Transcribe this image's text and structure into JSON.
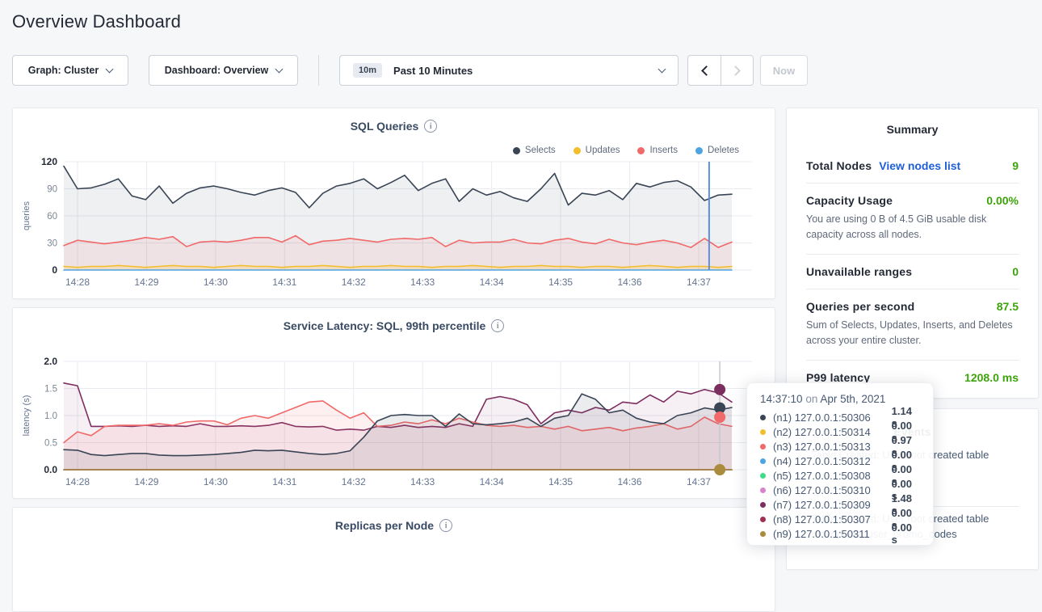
{
  "page": {
    "title": "Overview Dashboard"
  },
  "toolbar": {
    "graph_dropdown": {
      "label": "Graph: Cluster"
    },
    "dashboard_dropdown": {
      "label": "Dashboard: Overview"
    },
    "time_picker": {
      "badge": "10m",
      "label": "Past 10 Minutes"
    },
    "now_button": "Now"
  },
  "summary": {
    "title": "Summary",
    "rows": [
      {
        "label": "Total Nodes",
        "link": "View nodes list",
        "value": "9"
      },
      {
        "label": "Capacity Usage",
        "value": "0.00%",
        "description": "You are using 0 B of 4.5 GiB usable disk capacity across all nodes."
      },
      {
        "label": "Unavailable ranges",
        "value": "0"
      },
      {
        "label": "Queries per second",
        "value": "87.5",
        "description": "Sum of Selects, Updates, Inserts, and Deletes across your entire cluster."
      },
      {
        "label": "P99 latency",
        "value": "1208.0 ms"
      }
    ]
  },
  "events": {
    "title": "Events",
    "rows": [
      {
        "line1": "Table Created: User root created table"
      },
      {
        "line1": "Table Created: User root created table",
        "line2": "movr.public.user_promo_codes"
      }
    ]
  },
  "tooltip": {
    "time": "14:37:10",
    "on": " on ",
    "date": "Apr 5th, 2021",
    "rows": [
      {
        "color": "#394455",
        "label": "(n1) 127.0.0.1:50306",
        "value": "1.14 s"
      },
      {
        "color": "#f2be2c",
        "label": "(n2) 127.0.0.1:50314",
        "value": "0.00 s"
      },
      {
        "color": "#f16969",
        "label": "(n3) 127.0.0.1:50313",
        "value": "0.97 s"
      },
      {
        "color": "#4da4e0",
        "label": "(n4) 127.0.0.1:50312",
        "value": "0.00 s"
      },
      {
        "color": "#3edc8a",
        "label": "(n5) 127.0.0.1:50308",
        "value": "0.00 s"
      },
      {
        "color": "#d983cf",
        "label": "(n6) 127.0.0.1:50310",
        "value": "0.00 s"
      },
      {
        "color": "#7d2e60",
        "label": "(n7) 127.0.0.1:50309",
        "value": "1.48 s"
      },
      {
        "color": "#9e3150",
        "label": "(n8) 127.0.0.1:50307",
        "value": "0.00 s"
      },
      {
        "color": "#ab8b3e",
        "label": "(n9) 127.0.0.1:50311",
        "value": "0.00 s"
      }
    ]
  },
  "chart_data": [
    {
      "type": "area",
      "title": "SQL Queries",
      "ylabel": "queries",
      "ylim": [
        0,
        120
      ],
      "y_ticks": [
        0,
        30,
        60,
        90,
        120
      ],
      "y_tick_decimals": 0,
      "x_ticks": [
        "14:28",
        "14:29",
        "14:30",
        "14:31",
        "14:32",
        "14:33",
        "14:34",
        "14:35",
        "14:36",
        "14:37"
      ],
      "grid": true,
      "legend_position": "top-right",
      "legend": [
        {
          "label": "Selects",
          "color": "#394455"
        },
        {
          "label": "Updates",
          "color": "#f2be2c"
        },
        {
          "label": "Inserts",
          "color": "#f16969"
        },
        {
          "label": "Deletes",
          "color": "#4da4e0"
        }
      ],
      "series": [
        {
          "name": "Selects",
          "color": "#394455",
          "fill": 0.08,
          "values": [
            115,
            90,
            91,
            95,
            101,
            82,
            78,
            93,
            74,
            85,
            91,
            93,
            90,
            86,
            83,
            88,
            91,
            86,
            69,
            85,
            93,
            96,
            101,
            90,
            97,
            105,
            88,
            96,
            101,
            76,
            90,
            83,
            87,
            80,
            76,
            90,
            107,
            72,
            85,
            83,
            88,
            78,
            96,
            92,
            97,
            99,
            92,
            77,
            83,
            84
          ]
        },
        {
          "name": "Inserts",
          "color": "#f16969",
          "fill": 0.1,
          "values": [
            27,
            33,
            31,
            29,
            31,
            33,
            36,
            34,
            37,
            26,
            31,
            32,
            31,
            33,
            36,
            36,
            31,
            38,
            28,
            32,
            33,
            35,
            33,
            31,
            34,
            35,
            34,
            36,
            26,
            33,
            30,
            31,
            31,
            34,
            30,
            29,
            33,
            35,
            31,
            29,
            34,
            30,
            28,
            31,
            33,
            30,
            25,
            35,
            25,
            31
          ]
        },
        {
          "name": "Updates",
          "color": "#f2be2c",
          "fill": 0.18,
          "values": [
            4,
            3,
            4,
            4,
            5,
            4,
            3,
            4,
            5,
            4,
            4,
            3,
            4,
            5,
            4,
            4,
            3,
            4,
            4,
            5,
            4,
            3,
            4,
            4,
            5,
            4,
            4,
            3,
            4,
            4,
            5,
            4,
            3,
            4,
            4,
            5,
            4,
            4,
            3,
            4,
            4,
            3,
            4,
            5,
            4,
            3,
            4,
            4,
            3,
            4
          ]
        },
        {
          "name": "Deletes",
          "color": "#4da4e0",
          "fill": 0,
          "values": [
            0,
            0
          ]
        }
      ],
      "hover_line": {
        "x_frac": 0.966,
        "color": "#5b8fdd",
        "width": 2
      }
    },
    {
      "type": "area",
      "title": "Service Latency: SQL, 99th percentile",
      "ylabel": "latency (s)",
      "ylim": [
        0,
        2
      ],
      "y_ticks": [
        0,
        0.5,
        1,
        1.5,
        2
      ],
      "y_tick_decimals": 1,
      "x_ticks": [
        "14:28",
        "14:29",
        "14:30",
        "14:31",
        "14:32",
        "14:33",
        "14:34",
        "14:35",
        "14:36",
        "14:37"
      ],
      "grid": true,
      "legend_position": "none",
      "legend": [],
      "series": [
        {
          "name": "(n7) 127.0.0.1:50309",
          "color": "#7d2e60",
          "fill": 0.07,
          "values": [
            1.6,
            1.55,
            0.8,
            0.8,
            0.81,
            0.8,
            0.82,
            0.8,
            0.81,
            0.8,
            0.85,
            0.8,
            0.8,
            0.81,
            0.8,
            0.82,
            0.87,
            0.8,
            0.79,
            0.8,
            0.73,
            0.75,
            0.73,
            0.8,
            0.78,
            0.82,
            0.78,
            0.8,
            0.78,
            0.85,
            0.8,
            1.3,
            1.35,
            1.3,
            1.2,
            0.85,
            1.05,
            1.1,
            1.05,
            1.15,
            1.1,
            1.25,
            1.22,
            1.38,
            1.25,
            1.45,
            1.4,
            1.48,
            1.42,
            1.25
          ]
        },
        {
          "name": "(n3) 127.0.0.1:50313",
          "color": "#f16969",
          "fill": 0.1,
          "values": [
            0.5,
            0.7,
            0.63,
            0.8,
            0.82,
            0.82,
            0.82,
            0.85,
            0.82,
            0.88,
            0.9,
            0.9,
            0.83,
            0.95,
            1.0,
            0.95,
            1.05,
            1.15,
            1.25,
            1.27,
            1.1,
            0.95,
            1.05,
            0.8,
            0.82,
            0.88,
            0.85,
            0.92,
            0.85,
            0.95,
            0.88,
            0.82,
            0.8,
            0.82,
            0.78,
            0.8,
            0.75,
            0.8,
            0.72,
            0.75,
            0.78,
            0.72,
            0.77,
            0.8,
            0.85,
            0.75,
            0.8,
            0.97,
            0.85,
            0.8
          ]
        },
        {
          "name": "(n1) 127.0.0.1:50306",
          "color": "#394455",
          "fill": 0.1,
          "values": [
            0.37,
            0.36,
            0.28,
            0.26,
            0.28,
            0.3,
            0.3,
            0.27,
            0.26,
            0.26,
            0.27,
            0.28,
            0.3,
            0.32,
            0.36,
            0.35,
            0.36,
            0.33,
            0.3,
            0.28,
            0.3,
            0.35,
            0.6,
            0.9,
            1.0,
            1.02,
            1.0,
            1.0,
            0.8,
            1.03,
            0.85,
            0.83,
            0.85,
            0.88,
            0.95,
            0.8,
            0.95,
            1.0,
            1.4,
            1.3,
            1.05,
            1.1,
            0.95,
            0.88,
            0.85,
            1.0,
            1.05,
            1.14,
            1.1,
            1.15
          ]
        },
        {
          "name": "(n2) 127.0.0.1:50314",
          "color": "#f2be2c",
          "fill": 0,
          "values": [
            0,
            0
          ]
        },
        {
          "name": "(n4) 127.0.0.1:50312",
          "color": "#4da4e0",
          "fill": 0,
          "values": [
            0,
            0
          ]
        },
        {
          "name": "(n5) 127.0.0.1:50308",
          "color": "#3edc8a",
          "fill": 0,
          "values": [
            0,
            0
          ]
        },
        {
          "name": "(n6) 127.0.0.1:50310",
          "color": "#d983cf",
          "fill": 0,
          "values": [
            0,
            0
          ]
        },
        {
          "name": "(n8) 127.0.0.1:50307",
          "color": "#9e3150",
          "fill": 0,
          "values": [
            0,
            0
          ]
        },
        {
          "name": "(n9) 127.0.0.1:50311",
          "color": "#ab8b3e",
          "fill": 0,
          "values": [
            0,
            0
          ]
        }
      ],
      "hover_line": {
        "x_frac": 0.982,
        "color": "#c3c8d0",
        "width": 1.5,
        "dots": [
          {
            "color": "#7d2e60",
            "value": 1.48
          },
          {
            "color": "#394455",
            "value": 1.14
          },
          {
            "color": "#f16969",
            "value": 0.97
          },
          {
            "color": "#ab8b3e",
            "value": 0.0
          }
        ]
      }
    },
    {
      "type": "area",
      "title": "Replicas per Node"
    }
  ],
  "colors": {
    "accent_green": "#3da30b",
    "link_blue": "#1f5fd6",
    "hover_blue": "#5b8fdd"
  }
}
